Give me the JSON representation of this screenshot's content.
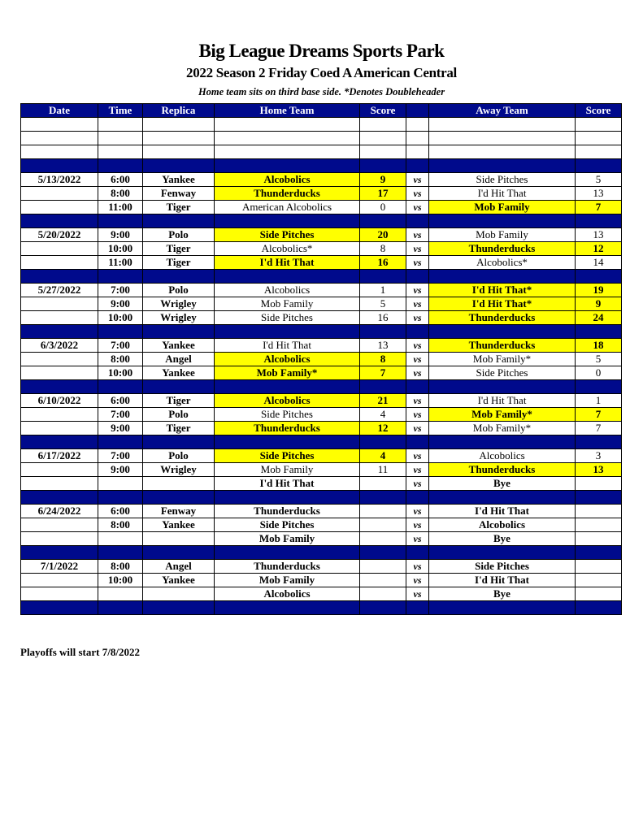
{
  "title": "Big League Dreams Sports Park",
  "subtitle": "2022 Season 2 Friday Coed A American Central",
  "note": "Home team sits on third base side.  *Denotes Doubleheader",
  "footer": "Playoffs will start 7/8/2022",
  "colors": {
    "header_bg": "#000a8c",
    "winner_highlight": "#ffff00"
  },
  "vs_label": "vs",
  "columns": [
    "Date",
    "Time",
    "Replica",
    "Home Team",
    "Score",
    "",
    "Away Team",
    "Score"
  ],
  "weeks": [
    {
      "games": [
        {
          "date": "",
          "time": "",
          "replica": "",
          "home": "",
          "home_score": "",
          "away": "",
          "away_score": "",
          "winner": null,
          "blank": true
        },
        {
          "date": "",
          "time": "",
          "replica": "",
          "home": "",
          "home_score": "",
          "away": "",
          "away_score": "",
          "winner": null,
          "blank": true
        },
        {
          "date": "",
          "time": "",
          "replica": "",
          "home": "",
          "home_score": "",
          "away": "",
          "away_score": "",
          "winner": null,
          "blank": true
        }
      ]
    },
    {
      "games": [
        {
          "date": "5/13/2022",
          "time": "6:00",
          "replica": "Yankee",
          "home": "Alcobolics",
          "home_score": "9",
          "away": "Side Pitches",
          "away_score": "5",
          "winner": "home"
        },
        {
          "date": "",
          "time": "8:00",
          "replica": "Fenway",
          "home": "Thunderducks",
          "home_score": "17",
          "away": "I'd Hit That",
          "away_score": "13",
          "winner": "home"
        },
        {
          "date": "",
          "time": "11:00",
          "replica": "Tiger",
          "home": "American Alcobolics",
          "home_score": "0",
          "away": "Mob Family",
          "away_score": "7",
          "winner": "away"
        }
      ]
    },
    {
      "games": [
        {
          "date": "5/20/2022",
          "time": "9:00",
          "replica": "Polo",
          "home": "Side Pitches",
          "home_score": "20",
          "away": "Mob Family",
          "away_score": "13",
          "winner": "home"
        },
        {
          "date": "",
          "time": "10:00",
          "replica": "Tiger",
          "home": "Alcobolics*",
          "home_score": "8",
          "away": "Thunderducks",
          "away_score": "12",
          "winner": "away"
        },
        {
          "date": "",
          "time": "11:00",
          "replica": "Tiger",
          "home": "I'd Hit That",
          "home_score": "16",
          "away": "Alcobolics*",
          "away_score": "14",
          "winner": "home"
        }
      ]
    },
    {
      "games": [
        {
          "date": "5/27/2022",
          "time": "7:00",
          "replica": "Polo",
          "home": "Alcobolics",
          "home_score": "1",
          "away": "I'd Hit That*",
          "away_score": "19",
          "winner": "away"
        },
        {
          "date": "",
          "time": "9:00",
          "replica": "Wrigley",
          "home": "Mob Family",
          "home_score": "5",
          "away": "I'd Hit That*",
          "away_score": "9",
          "winner": "away"
        },
        {
          "date": "",
          "time": "10:00",
          "replica": "Wrigley",
          "home": "Side Pitches",
          "home_score": "16",
          "away": "Thunderducks",
          "away_score": "24",
          "winner": "away"
        }
      ]
    },
    {
      "games": [
        {
          "date": "6/3/2022",
          "time": "7:00",
          "replica": "Yankee",
          "home": "I'd Hit That",
          "home_score": "13",
          "away": "Thunderducks",
          "away_score": "18",
          "winner": "away"
        },
        {
          "date": "",
          "time": "8:00",
          "replica": "Angel",
          "home": "Alcobolics",
          "home_score": "8",
          "away": "Mob Family*",
          "away_score": "5",
          "winner": "home"
        },
        {
          "date": "",
          "time": "10:00",
          "replica": "Yankee",
          "home": "Mob Family*",
          "home_score": "7",
          "away": "Side Pitches",
          "away_score": "0",
          "winner": "home"
        }
      ]
    },
    {
      "games": [
        {
          "date": "6/10/2022",
          "time": "6:00",
          "replica": "Tiger",
          "home": "Alcobolics",
          "home_score": "21",
          "away": "I'd Hit That",
          "away_score": "1",
          "winner": "home"
        },
        {
          "date": "",
          "time": "7:00",
          "replica": "Polo",
          "home": "Side Pitches",
          "home_score": "4",
          "away": "Mob Family*",
          "away_score": "7",
          "winner": "away"
        },
        {
          "date": "",
          "time": "9:00",
          "replica": "Tiger",
          "home": "Thunderducks",
          "home_score": "12",
          "away": "Mob Family*",
          "away_score": "7",
          "winner": "home"
        }
      ]
    },
    {
      "games": [
        {
          "date": "6/17/2022",
          "time": "7:00",
          "replica": "Polo",
          "home": "Side Pitches",
          "home_score": "4",
          "away": "Alcobolics",
          "away_score": "3",
          "winner": "home"
        },
        {
          "date": "",
          "time": "9:00",
          "replica": "Wrigley",
          "home": "Mob Family",
          "home_score": "11",
          "away": "Thunderducks",
          "away_score": "13",
          "winner": "away"
        },
        {
          "date": "",
          "time": "",
          "replica": "",
          "home": "I'd Hit That",
          "home_score": "",
          "away": "Bye",
          "away_score": "",
          "winner": null
        }
      ]
    },
    {
      "games": [
        {
          "date": "6/24/2022",
          "time": "6:00",
          "replica": "Fenway",
          "home": "Thunderducks",
          "home_score": "",
          "away": "I'd Hit That",
          "away_score": "",
          "winner": null
        },
        {
          "date": "",
          "time": "8:00",
          "replica": "Yankee",
          "home": "Side Pitches",
          "home_score": "",
          "away": "Alcobolics",
          "away_score": "",
          "winner": null
        },
        {
          "date": "",
          "time": "",
          "replica": "",
          "home": "Mob Family",
          "home_score": "",
          "away": "Bye",
          "away_score": "",
          "winner": null
        }
      ]
    },
    {
      "games": [
        {
          "date": "7/1/2022",
          "time": "8:00",
          "replica": "Angel",
          "home": "Thunderducks",
          "home_score": "",
          "away": "Side Pitches",
          "away_score": "",
          "winner": null
        },
        {
          "date": "",
          "time": "10:00",
          "replica": "Yankee",
          "home": "Mob Family",
          "home_score": "",
          "away": "I'd Hit That",
          "away_score": "",
          "winner": null
        },
        {
          "date": "",
          "time": "",
          "replica": "",
          "home": "Alcobolics",
          "home_score": "",
          "away": "Bye",
          "away_score": "",
          "winner": null
        }
      ]
    }
  ]
}
